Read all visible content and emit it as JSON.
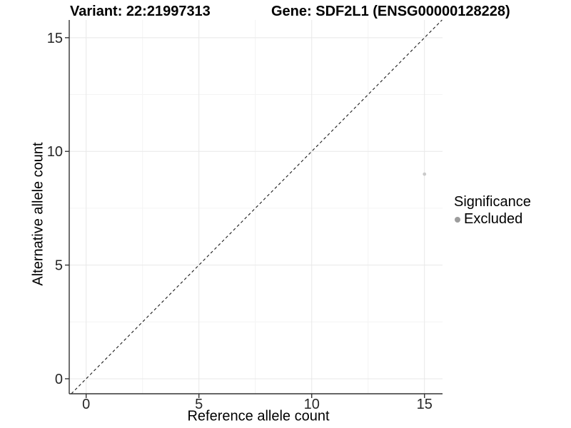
{
  "titles": {
    "variant": "Variant: 22:21997313",
    "gene": "Gene: SDF2L1 (ENSG00000128228)"
  },
  "axes": {
    "x": {
      "label": "Reference allele count",
      "ticks": [
        "0",
        "5",
        "10",
        "15"
      ]
    },
    "y": {
      "label": "Alternative allele count",
      "ticks": [
        "0",
        "5",
        "10",
        "15"
      ]
    }
  },
  "legend": {
    "title": "Significance",
    "items": [
      {
        "label": "Excluded",
        "color": "#9d9d9d",
        "marker": "circle"
      }
    ]
  },
  "colors": {
    "background": "#ffffff",
    "axis_line": "#333333",
    "tick_text": "#262626",
    "major_grid": "#e8e8e8",
    "minor_grid": "#f4f4f4",
    "reference_line": "#1a1a1a",
    "point": "#cacaca"
  },
  "chart_data": {
    "type": "scatter",
    "title": "Variant: 22:21997313 / Gene: SDF2L1 (ENSG00000128228)",
    "xlabel": "Reference allele count",
    "ylabel": "Alternative allele count",
    "xlim": [
      -0.75,
      15.8
    ],
    "ylim": [
      -0.66,
      15.78
    ],
    "xticks": [
      0,
      5,
      10,
      15
    ],
    "yticks": [
      0,
      5,
      10,
      15
    ],
    "minor_xticks": [
      2.5,
      7.5,
      12.5
    ],
    "minor_yticks": [
      2.5,
      7.5,
      12.5
    ],
    "grid": "major+minor",
    "legend_position": "right-center",
    "reference_line": {
      "type": "identity",
      "slope": 1,
      "intercept": 0,
      "style": "dashed"
    },
    "series": [
      {
        "name": "Excluded",
        "color": "#cacaca",
        "points": [
          {
            "x": 15,
            "y": 9
          }
        ]
      }
    ]
  }
}
